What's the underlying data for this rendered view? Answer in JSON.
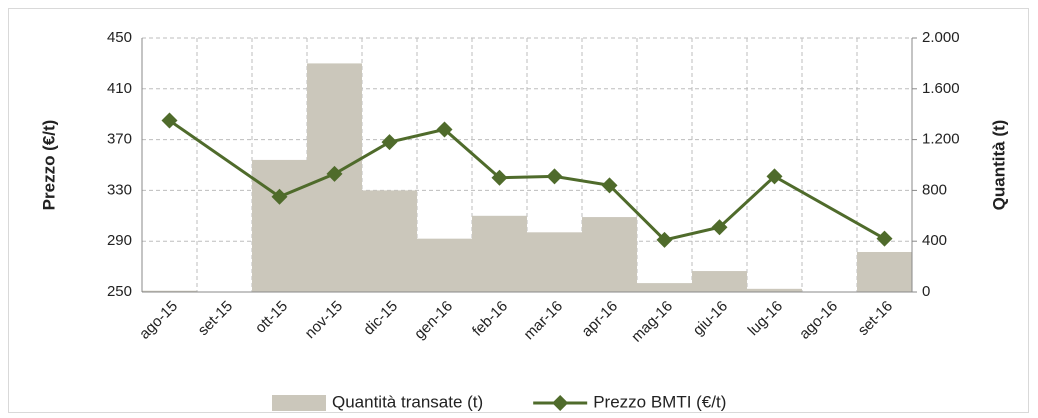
{
  "chart_data": {
    "type": "bar_line",
    "categories": [
      "ago-15",
      "set-15",
      "ott-15",
      "nov-15",
      "dic-15",
      "gen-16",
      "feb-16",
      "mar-16",
      "apr-16",
      "mag-16",
      "giu-16",
      "lug-16",
      "ago-16",
      "set-16"
    ],
    "series": [
      {
        "name": "Quantità transate (t)",
        "type": "bar",
        "axis": "y2",
        "color": "#cbc7bb",
        "values": [
          10,
          0,
          1040,
          1800,
          800,
          420,
          600,
          470,
          590,
          70,
          165,
          25,
          0,
          315
        ]
      },
      {
        "name": "Prezzo BMTI (€/t)",
        "type": "line",
        "axis": "y",
        "color": "#4f6b2b",
        "values": [
          385,
          null,
          325,
          343,
          368,
          378,
          340,
          341,
          334,
          291,
          301,
          341,
          null,
          292
        ]
      }
    ],
    "y_label": "Prezzo (€/t)",
    "y2_label": "Quantità (t)",
    "ylim": [
      250,
      450
    ],
    "yticks": [
      250,
      290,
      330,
      370,
      410,
      450
    ],
    "y2lim": [
      0,
      2000
    ],
    "y2ticks": [
      0,
      400,
      800,
      {
        "value": 1200,
        "label": "1.200"
      },
      {
        "value": 1600,
        "label": "1.600"
      },
      {
        "value": 2000,
        "label": "2.000"
      }
    ],
    "grid": true,
    "span_gaps": true,
    "legend": "bottom"
  }
}
